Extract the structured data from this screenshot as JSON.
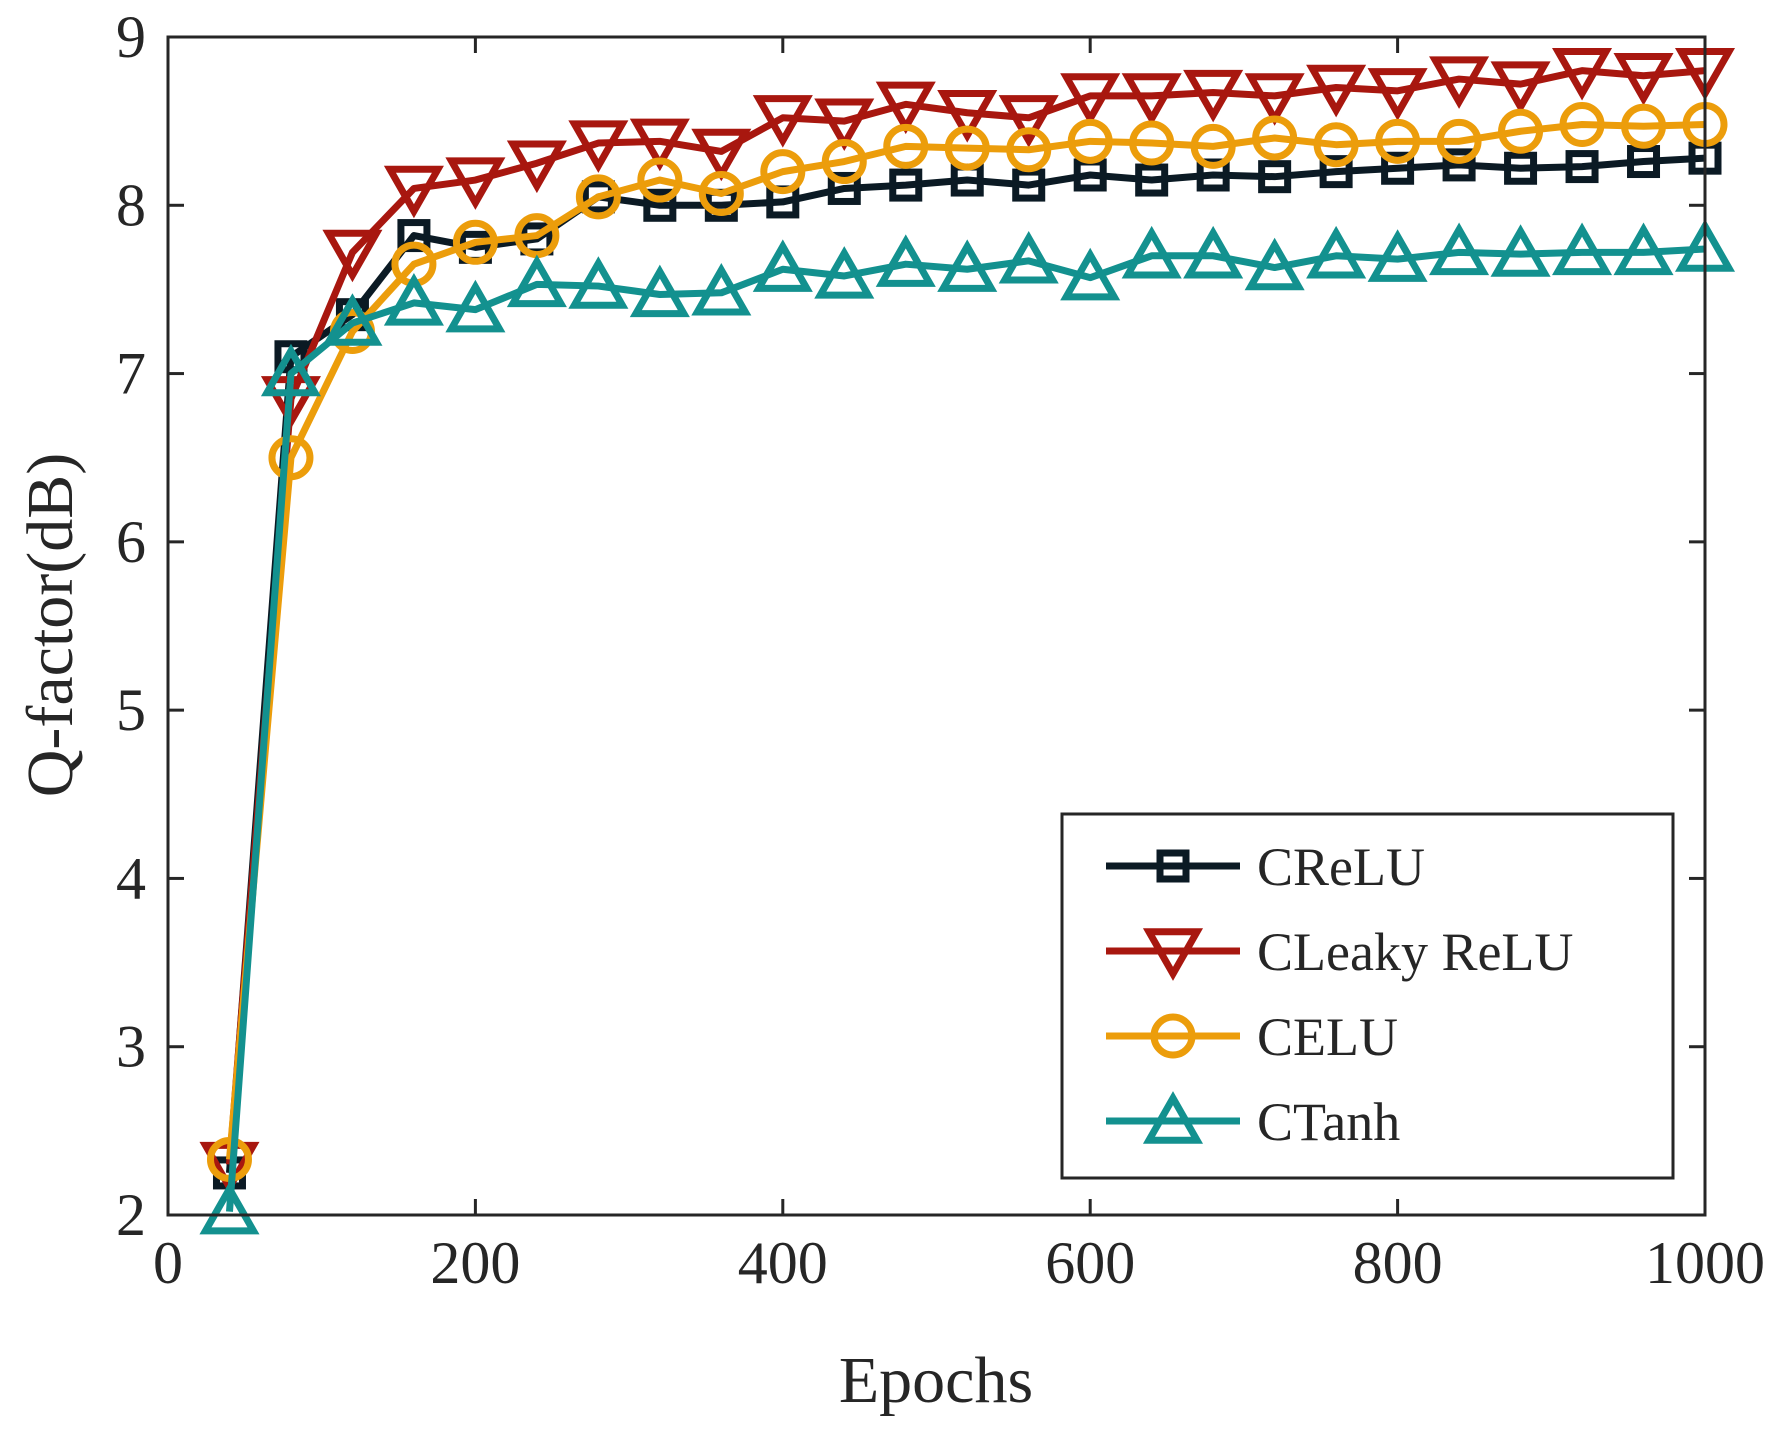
{
  "chart_data": {
    "type": "line",
    "title": "",
    "xlabel": "Epochs",
    "ylabel": "Q-factor(dB)",
    "xlim": [
      0,
      1000
    ],
    "ylim": [
      2,
      9
    ],
    "xticks": [
      0,
      200,
      400,
      600,
      800,
      1000
    ],
    "yticks": [
      2,
      3,
      4,
      5,
      6,
      7,
      8,
      9
    ],
    "xtick_labels": [
      "0",
      "200",
      "400",
      "600",
      "800",
      "1000"
    ],
    "ytick_labels": [
      "2",
      "3",
      "4",
      "5",
      "6",
      "7",
      "8",
      "9"
    ],
    "grid": false,
    "legend_position": "bottom-right",
    "x": [
      40,
      80,
      120,
      160,
      200,
      240,
      280,
      320,
      360,
      400,
      440,
      480,
      520,
      560,
      600,
      640,
      680,
      720,
      760,
      800,
      840,
      880,
      920,
      960,
      1000
    ],
    "series": [
      {
        "name": "CReLU",
        "color": "#0b1a24",
        "marker": "square",
        "values": [
          2.25,
          7.1,
          7.35,
          7.82,
          7.75,
          7.8,
          8.05,
          8.0,
          8.0,
          8.02,
          8.1,
          8.12,
          8.15,
          8.12,
          8.18,
          8.15,
          8.18,
          8.17,
          8.2,
          8.22,
          8.24,
          8.22,
          8.23,
          8.26,
          8.28
        ]
      },
      {
        "name": "CLeaky ReLU",
        "color": "#a8170f",
        "marker": "triangle-down",
        "values": [
          2.3,
          6.85,
          7.72,
          8.1,
          8.15,
          8.25,
          8.37,
          8.38,
          8.32,
          8.52,
          8.5,
          8.6,
          8.55,
          8.52,
          8.65,
          8.65,
          8.67,
          8.65,
          8.7,
          8.68,
          8.75,
          8.72,
          8.8,
          8.77,
          8.8
        ]
      },
      {
        "name": "CELU",
        "color": "#ec9d0b",
        "marker": "circle",
        "values": [
          2.33,
          6.5,
          7.25,
          7.65,
          7.78,
          7.82,
          8.05,
          8.15,
          8.07,
          8.2,
          8.26,
          8.35,
          8.34,
          8.33,
          8.38,
          8.37,
          8.35,
          8.4,
          8.36,
          8.38,
          8.38,
          8.44,
          8.48,
          8.47,
          8.48
        ]
      },
      {
        "name": "CTanh",
        "color": "#13918f",
        "marker": "triangle-up",
        "values": [
          2.02,
          7.0,
          7.3,
          7.42,
          7.38,
          7.53,
          7.52,
          7.47,
          7.48,
          7.62,
          7.58,
          7.65,
          7.62,
          7.67,
          7.57,
          7.7,
          7.7,
          7.63,
          7.7,
          7.68,
          7.72,
          7.71,
          7.72,
          7.72,
          7.74
        ]
      }
    ]
  }
}
